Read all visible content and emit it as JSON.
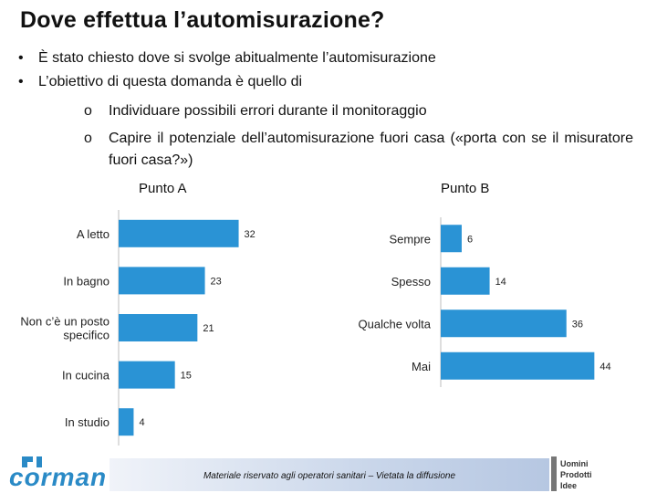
{
  "title": "Dove effettua l’automisurazione?",
  "bullets": {
    "marker": "•",
    "sub_marker": "o",
    "item1": "È stato chiesto dove si svolge abitualmente l’automisurazione",
    "item2": "L’obiettivo di questa domanda è quello di",
    "sub1": "Individuare possibili errori durante il monitoraggio",
    "sub2": "Capire il potenziale dell’automisurazione fuori casa («porta con se il misuratore fuori casa?»)"
  },
  "colors": {
    "bar": "#2a93d5",
    "axis": "#bdbdbd"
  },
  "chart_data": [
    {
      "type": "bar",
      "orientation": "horizontal",
      "title": "Punto A",
      "categories": [
        "A letto",
        "In bagno",
        "Non c’è un posto specifico",
        "In cucina",
        "In studio"
      ],
      "category_lines": [
        [
          "A letto"
        ],
        [
          "In bagno"
        ],
        [
          "Non c’è un posto",
          "specifico"
        ],
        [
          "In cucina"
        ],
        [
          "In studio"
        ]
      ],
      "values": [
        32,
        23,
        21,
        15,
        4
      ],
      "xlim": [
        0,
        36
      ]
    },
    {
      "type": "bar",
      "orientation": "horizontal",
      "title": "Punto B",
      "categories": [
        "Sempre",
        "Spesso",
        "Qualche volta",
        "Mai"
      ],
      "category_lines": [
        [
          "Sempre"
        ],
        [
          "Spesso"
        ],
        [
          "Qualche volta"
        ],
        [
          "Mai"
        ]
      ],
      "values": [
        6,
        14,
        36,
        44
      ],
      "xlim": [
        0,
        46
      ]
    }
  ],
  "footer": {
    "disclaimer": "Materiale riservato agli operatori sanitari – Vietata la diffusione",
    "logo": "corman",
    "brand_lines": [
      "Uomini",
      "Prodotti",
      "Idee"
    ]
  }
}
